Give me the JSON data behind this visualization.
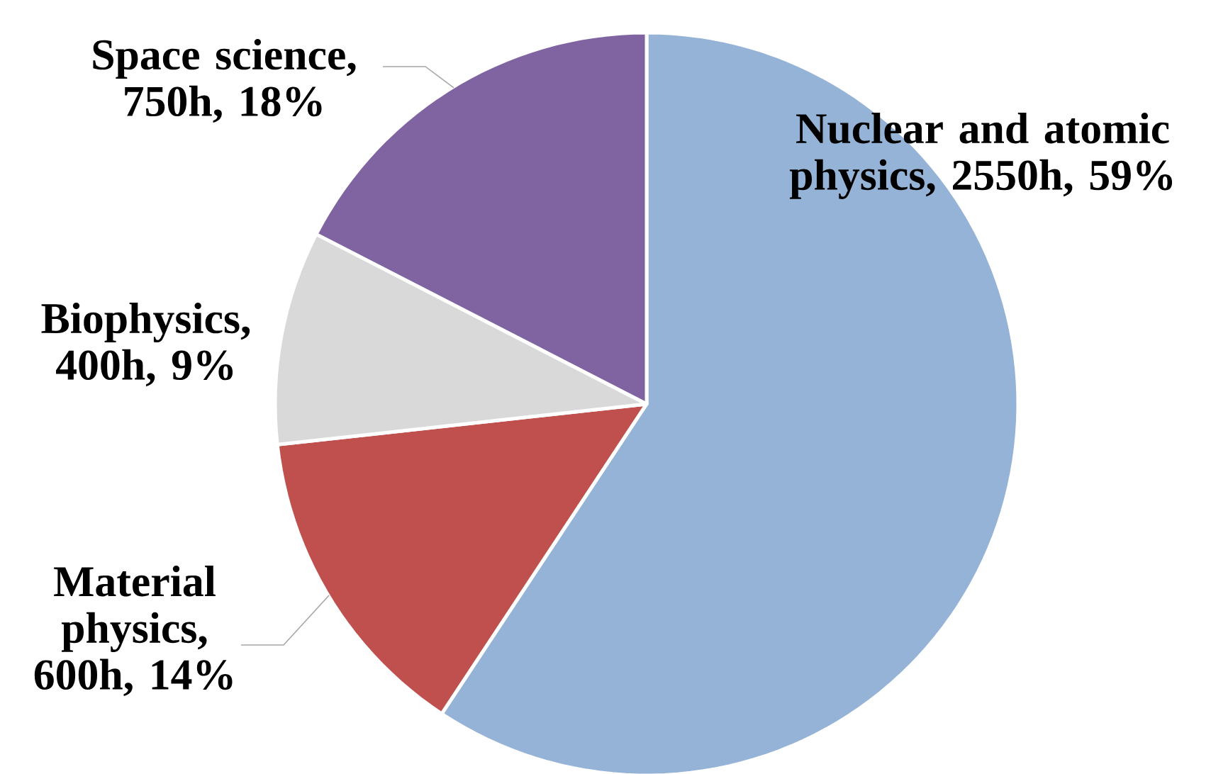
{
  "chart_data": {
    "type": "pie",
    "categories": [
      "Nuclear and atomic physics, 2550h, 59%",
      "Material physics, 600h, 14%",
      "Biophysics, 400h, 9%",
      "Space science, 750h, 18%"
    ],
    "values": [
      2550,
      600,
      400,
      750
    ],
    "colors": [
      "#95b3d7",
      "#c0504d",
      "#d9d9d9",
      "#8064a2"
    ]
  }
}
